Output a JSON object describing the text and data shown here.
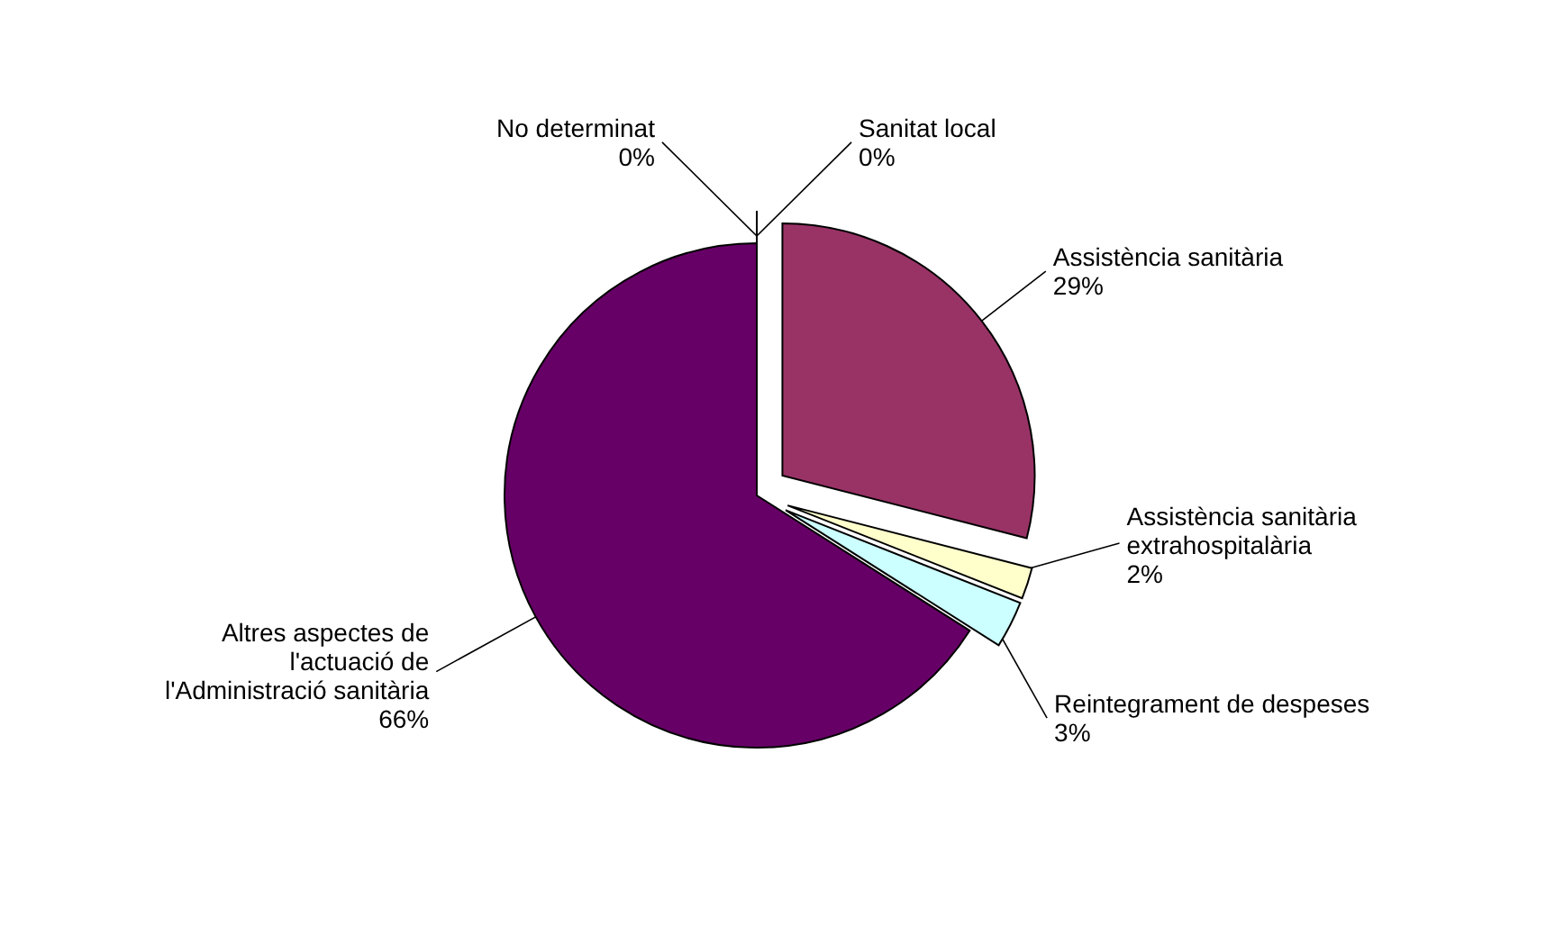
{
  "chart_data": {
    "type": "pie",
    "categories": [
      "Sanitat local",
      "Assistència sanitària",
      "Assistència sanitària extrahospitalària",
      "Reintegrament de despeses",
      "Altres aspectes de l'actuació de l'Administració sanitària",
      "No determinat"
    ],
    "values": [
      0,
      29,
      2,
      3,
      66,
      0
    ],
    "value_labels": [
      "0%",
      "29%",
      "2%",
      "3%",
      "66%",
      "0%"
    ],
    "colors": [
      "#000000",
      "#993366",
      "#ffffcc",
      "#ccffff",
      "#660066",
      "#000000"
    ]
  }
}
